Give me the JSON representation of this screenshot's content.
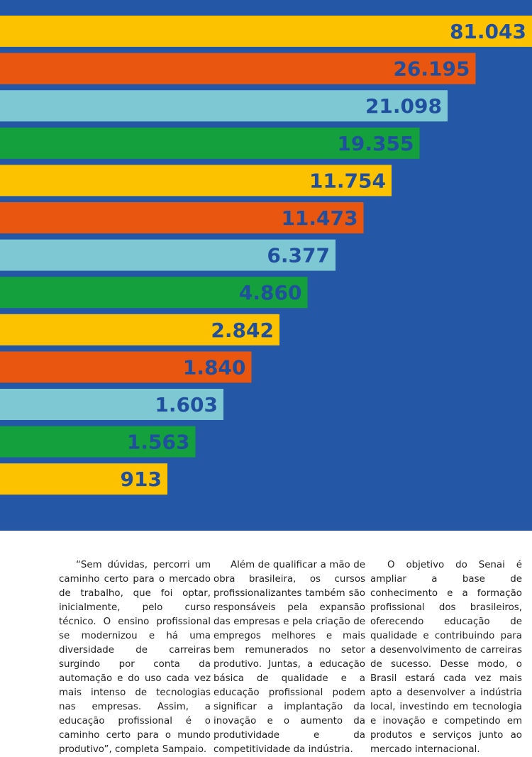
{
  "chart_data": {
    "type": "bar",
    "orientation": "horizontal",
    "values": [
      81043,
      26195,
      21098,
      19355,
      11754,
      11473,
      6377,
      4860,
      2842,
      1840,
      1603,
      1563,
      913
    ],
    "value_labels": [
      "81.043",
      "26.195",
      "21.098",
      "19.355",
      "11.754",
      "11.473",
      "6.377",
      "4.860",
      "2.842",
      "1.840",
      "1.603",
      "1.563",
      "913"
    ],
    "bar_colors": [
      "#fcc200",
      "#e8560f",
      "#7ec8d4",
      "#14a03c"
    ],
    "label_color": "#1f4f9e",
    "background": "#2458a6"
  },
  "text_columns": [
    "“Sem dúvidas, percorri um caminho certo para o mercado de trabalho, que foi optar, inicialmente, pelo curso técnico. O ensino profissional se modernizou e há uma diversidade de carreiras surgindo por conta da automação e do uso cada vez mais intenso de tecnologias nas empresas. Assim, a educação profissional é o caminho certo para o mundo produtivo”, completa Sampaio.",
    "Além de qualificar a mão de obra brasileira, os cursos profissionalizantes também são responsáveis pela expansão das empresas e pela criação de empregos melhores e mais bem remunerados no setor produtivo. Juntas, a educação básica de qualidade e a educação profissional podem significar a implantação da inovação e o aumento da produtividade e da competitividade da indústria.",
    "O objetivo do Senai é ampliar a base de conhecimento e a formação profissional dos brasileiros, oferecendo educação de qualidade e contribuindo para a desenvolvimento de carreiras de sucesso. Desse modo, o Brasil estará cada vez mais apto a desenvolver a indústria local, investindo em tecnologia e inovação e competindo em produtos e serviços junto ao mercado internacional."
  ]
}
